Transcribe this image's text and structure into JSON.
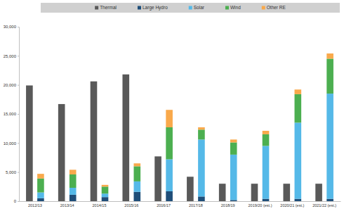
{
  "chart_data": {
    "type": "bar",
    "stacked": true,
    "grid": false,
    "legend": "top",
    "categories": [
      "2012/13",
      "2013/14",
      "2014/15",
      "2015/16",
      "2016/17",
      "2017/18",
      "2018/19",
      "2019/20 (est.)",
      "2020/21 (est.)",
      "2021/22 (est.)"
    ],
    "series": [
      {
        "name": "Thermal",
        "color": "#595959",
        "values": [
          19900,
          16700,
          20600,
          21800,
          7700,
          4200,
          3000,
          3000,
          3000,
          3000
        ]
      },
      {
        "name": "Large Hydro",
        "color": "#1f4e79",
        "values": [
          500,
          1100,
          700,
          1600,
          1700,
          800,
          200,
          400,
          400,
          400
        ]
      },
      {
        "name": "Solar",
        "color": "#55b9e8",
        "values": [
          1000,
          1200,
          600,
          1800,
          5500,
          9800,
          7800,
          9100,
          13100,
          18100
        ]
      },
      {
        "name": "Wind",
        "color": "#4caf50",
        "values": [
          2400,
          2300,
          1200,
          2600,
          5500,
          1700,
          2100,
          2000,
          4900,
          6000
        ]
      },
      {
        "name": "Other RE",
        "color": "#f9a94b",
        "values": [
          800,
          800,
          300,
          500,
          3000,
          400,
          500,
          600,
          800,
          900
        ]
      }
    ],
    "ylim": [
      0,
      30000
    ],
    "yticks": [
      0,
      {
        "value": 5000,
        "label": "5,000"
      },
      {
        "value": 10000,
        "label": "10,000"
      },
      {
        "value": 15000,
        "label": "15,000"
      },
      {
        "value": 20000,
        "label": "20,000"
      },
      {
        "value": 25000,
        "label": "25,000"
      },
      {
        "value": 30000,
        "label": "30,000"
      }
    ]
  }
}
